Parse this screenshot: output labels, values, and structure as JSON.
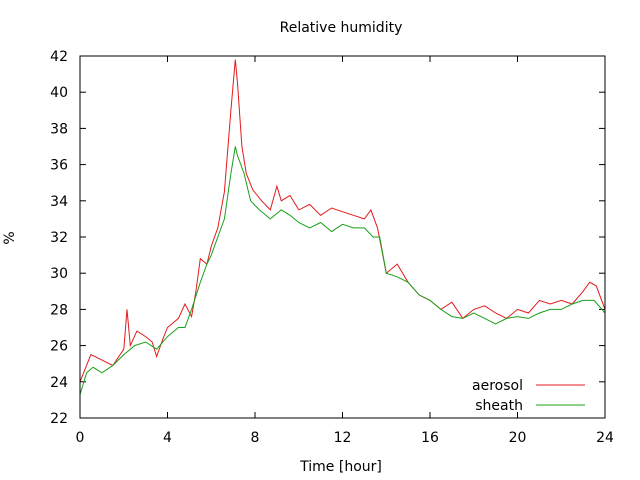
{
  "chart_data": {
    "type": "line",
    "title": "Relative humidity",
    "xlabel": "Time [hour]",
    "ylabel": "%",
    "xlim": [
      0,
      24
    ],
    "ylim": [
      22,
      42
    ],
    "x_ticks": [
      0,
      4,
      8,
      12,
      16,
      20,
      24
    ],
    "y_ticks": [
      22,
      24,
      26,
      28,
      30,
      32,
      34,
      36,
      38,
      40,
      42
    ],
    "grid": false,
    "legend_position": "bottom-right",
    "series": [
      {
        "name": "aerosol",
        "color": "#e41a1c",
        "x": [
          0,
          0.5,
          1.0,
          1.5,
          2.0,
          2.15,
          2.3,
          2.6,
          3.0,
          3.3,
          3.5,
          3.8,
          4.0,
          4.5,
          4.8,
          5.1,
          5.3,
          5.5,
          5.8,
          6.0,
          6.3,
          6.6,
          6.9,
          7.1,
          7.2,
          7.4,
          7.6,
          7.9,
          8.3,
          8.7,
          9.0,
          9.2,
          9.6,
          10.0,
          10.5,
          11.0,
          11.5,
          12.0,
          12.5,
          13.0,
          13.3,
          13.6,
          14.0,
          14.5,
          15.0,
          15.5,
          16.0,
          16.5,
          17.0,
          17.5,
          18.0,
          18.5,
          19.0,
          19.5,
          20.0,
          20.5,
          21.0,
          21.5,
          22.0,
          22.5,
          23.0,
          23.3,
          23.6,
          24.0
        ],
        "y": [
          24.0,
          25.5,
          25.2,
          24.9,
          25.8,
          28.0,
          26.0,
          26.8,
          26.5,
          26.2,
          25.4,
          26.4,
          27.0,
          27.5,
          28.3,
          27.6,
          29.0,
          30.8,
          30.5,
          31.5,
          32.5,
          34.5,
          39.0,
          41.8,
          40.5,
          37.0,
          35.5,
          34.6,
          34.0,
          33.5,
          34.8,
          34.0,
          34.3,
          33.5,
          33.8,
          33.2,
          33.6,
          33.4,
          33.2,
          33.0,
          33.5,
          32.5,
          30.0,
          30.5,
          29.5,
          28.8,
          28.5,
          28.0,
          28.4,
          27.5,
          28.0,
          28.2,
          27.8,
          27.5,
          28.0,
          27.8,
          28.5,
          28.3,
          28.5,
          28.3,
          29.0,
          29.5,
          29.3,
          28.0
        ]
      },
      {
        "name": "sheath",
        "color": "#1aa01a",
        "x": [
          0,
          0.3,
          0.6,
          1.0,
          1.5,
          2.0,
          2.5,
          3.0,
          3.5,
          4.0,
          4.5,
          4.8,
          5.1,
          5.5,
          5.8,
          6.0,
          6.3,
          6.6,
          6.9,
          7.1,
          7.2,
          7.5,
          7.8,
          8.2,
          8.7,
          9.2,
          9.6,
          10.0,
          10.5,
          11.0,
          11.5,
          12.0,
          12.5,
          13.0,
          13.4,
          13.7,
          14.0,
          14.5,
          15.0,
          15.5,
          16.0,
          16.5,
          17.0,
          17.5,
          18.0,
          18.5,
          19.0,
          19.5,
          20.0,
          20.5,
          21.0,
          21.5,
          22.0,
          22.5,
          23.0,
          23.5,
          24.0
        ],
        "y": [
          23.3,
          24.5,
          24.8,
          24.5,
          24.9,
          25.5,
          26.0,
          26.2,
          25.8,
          26.5,
          27.0,
          27.0,
          28.0,
          29.5,
          30.5,
          31.0,
          32.0,
          33.0,
          35.5,
          37.0,
          36.5,
          35.5,
          34.0,
          33.5,
          33.0,
          33.5,
          33.2,
          32.8,
          32.5,
          32.8,
          32.3,
          32.7,
          32.5,
          32.5,
          32.0,
          32.0,
          30.0,
          29.8,
          29.5,
          28.8,
          28.5,
          28.0,
          27.6,
          27.5,
          27.8,
          27.5,
          27.2,
          27.5,
          27.6,
          27.5,
          27.8,
          28.0,
          28.0,
          28.3,
          28.5,
          28.5,
          27.8
        ]
      }
    ]
  }
}
